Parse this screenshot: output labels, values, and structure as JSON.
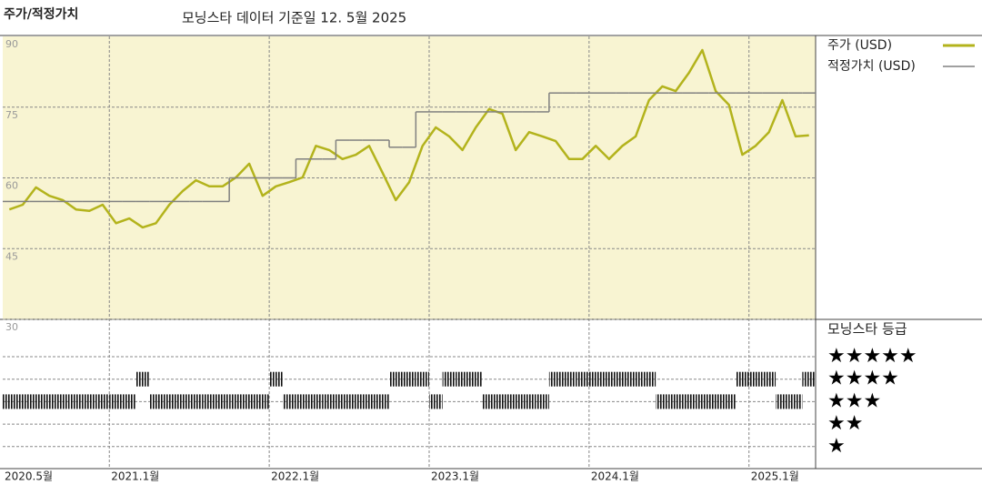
{
  "chart_data": {
    "type": "line",
    "title": "주가/적정가치",
    "subtitle": "모닝스타 데이터 기준일 12. 5월 2025",
    "x": [
      "2020-05",
      "2020-06",
      "2020-07",
      "2020-08",
      "2020-09",
      "2020-10",
      "2020-11",
      "2020-12",
      "2021-01",
      "2021-02",
      "2021-03",
      "2021-04",
      "2021-05",
      "2021-06",
      "2021-07",
      "2021-08",
      "2021-09",
      "2021-10",
      "2021-11",
      "2021-12",
      "2022-01",
      "2022-02",
      "2022-03",
      "2022-04",
      "2022-05",
      "2022-06",
      "2022-07",
      "2022-08",
      "2022-09",
      "2022-10",
      "2022-11",
      "2022-12",
      "2023-01",
      "2023-02",
      "2023-03",
      "2023-04",
      "2023-05",
      "2023-06",
      "2023-07",
      "2023-08",
      "2023-09",
      "2023-10",
      "2023-11",
      "2023-12",
      "2024-01",
      "2024-02",
      "2024-03",
      "2024-04",
      "2024-05",
      "2024-06",
      "2024-07",
      "2024-08",
      "2024-09",
      "2024-10",
      "2024-11",
      "2024-12",
      "2025-01",
      "2025-02",
      "2025-03",
      "2025-04",
      "2025-05"
    ],
    "series": [
      {
        "name": "주가 (USD)",
        "color": "#b3b31c",
        "values": [
          53.3,
          54.3,
          58,
          56.2,
          55.3,
          53.3,
          53,
          54.3,
          50.4,
          51.4,
          49.5,
          50.4,
          54.3,
          57.2,
          59.5,
          58.2,
          58.2,
          60.1,
          63,
          56.2,
          58.2,
          59.1,
          60.1,
          66.8,
          65.9,
          64,
          64.9,
          66.8,
          61.1,
          55.3,
          59.1,
          66.8,
          70.7,
          68.8,
          65.9,
          70.7,
          74.6,
          73.6,
          65.9,
          69.7,
          68.8,
          67.8,
          64,
          64,
          66.8,
          64,
          66.8,
          68.8,
          76.5,
          79.4,
          78.4,
          82.3,
          87.1,
          78.4,
          75.5,
          64.9,
          66.8,
          69.7,
          76.5,
          68.8,
          69
        ]
      },
      {
        "name": "적정가치 (USD)",
        "color": "#808080",
        "step": true,
        "values": [
          55,
          55,
          55,
          55,
          55,
          55,
          55,
          55,
          55,
          55,
          55,
          55,
          55,
          55,
          55,
          55,
          55,
          60,
          60,
          60,
          60,
          60,
          64,
          64,
          64,
          68,
          68,
          68,
          68,
          66.5,
          66.5,
          74,
          74,
          74,
          74,
          74,
          74,
          74,
          74,
          74,
          74,
          78,
          78,
          78,
          78,
          78,
          78,
          78,
          78,
          78,
          78,
          78,
          78,
          78,
          78,
          78,
          78,
          78,
          78,
          78,
          78
        ]
      }
    ],
    "xlim": [
      "2020-05",
      "2025-06"
    ],
    "xticks": [
      {
        "value": "2020-05",
        "label": "2020.5월"
      },
      {
        "value": "2021-01",
        "label": "2021.1월"
      },
      {
        "value": "2022-01",
        "label": "2022.1월"
      },
      {
        "value": "2023-01",
        "label": "2023.1월"
      },
      {
        "value": "2024-01",
        "label": "2024.1월"
      },
      {
        "value": "2025-01",
        "label": "2025.1월"
      }
    ],
    "ylim": [
      30,
      90
    ],
    "yticks": [
      90,
      75,
      60,
      45,
      30
    ],
    "grid": true,
    "ratings": {
      "title": "모닝스타 등급",
      "levels": [
        {
          "value": 5,
          "label": "★★★★★"
        },
        {
          "value": 4,
          "label": "★★★★"
        },
        {
          "value": 3,
          "label": "★★★"
        },
        {
          "value": 2,
          "label": "★★"
        },
        {
          "value": 1,
          "label": "★"
        }
      ],
      "values": [
        3,
        3,
        3,
        3,
        3,
        3,
        3,
        3,
        3,
        3,
        4,
        3,
        3,
        3,
        3,
        3,
        3,
        3,
        3,
        3,
        4,
        3,
        3,
        3,
        3,
        3,
        3,
        3,
        3,
        4,
        4,
        4,
        3,
        4,
        4,
        4,
        3,
        3,
        3,
        3,
        3,
        4,
        4,
        4,
        4,
        4,
        4,
        4,
        4,
        3,
        3,
        3,
        3,
        3,
        3,
        4,
        4,
        4,
        3,
        3,
        4
      ]
    }
  }
}
